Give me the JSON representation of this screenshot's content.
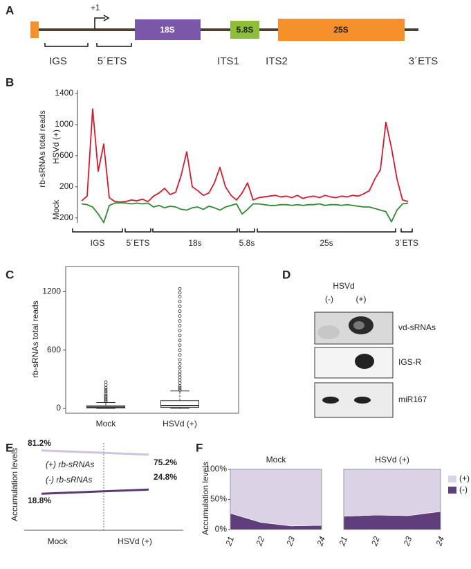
{
  "panel_labels": [
    "A",
    "B",
    "C",
    "D",
    "E",
    "F"
  ],
  "gene_map": {
    "start_label": "+1",
    "genes": [
      "18S",
      "5.8S",
      "25S"
    ],
    "regions": [
      "IGS",
      "5´ETS",
      "ITS1",
      "ITS2",
      "3´ETS"
    ]
  },
  "blot": {
    "title": "HSVd",
    "lanes": [
      "(-)",
      "(+)"
    ],
    "rows": [
      "vd-sRNAs",
      "IGS-R",
      "miR167"
    ]
  },
  "chart_data": [
    {
      "type": "line",
      "ylabel": "rb-sRNAs total reads",
      "ylim": [
        -300,
        1400
      ],
      "yticks": [
        {
          "value": -200,
          "label": "200"
        },
        200,
        600,
        1000,
        1400
      ],
      "series": [
        {
          "name": "HSVd (+)",
          "color": "#d7192d",
          "values": [
            20,
            80,
            1200,
            400,
            750,
            60,
            10,
            5,
            10,
            30,
            20,
            40,
            10,
            80,
            120,
            180,
            100,
            130,
            350,
            650,
            200,
            150,
            90,
            120,
            250,
            450,
            200,
            90,
            30,
            120,
            250,
            30,
            60,
            70,
            80,
            90,
            70,
            80,
            60,
            90,
            50,
            70,
            80,
            60,
            90,
            70,
            60,
            80,
            70,
            90,
            80,
            110,
            150,
            300,
            420,
            1030,
            700,
            300,
            30,
            10
          ]
        },
        {
          "name": "Mock",
          "color": "#2e8b2e",
          "values": [
            -20,
            -30,
            -60,
            -150,
            -260,
            -40,
            -10,
            -5,
            -10,
            -20,
            -10,
            -20,
            -10,
            -60,
            -40,
            -70,
            -50,
            -60,
            -90,
            -100,
            -70,
            -60,
            -90,
            -50,
            -70,
            -100,
            -60,
            -40,
            -20,
            -150,
            -90,
            -20,
            -20,
            -30,
            -40,
            -40,
            -30,
            -30,
            -40,
            -30,
            -40,
            -30,
            -30,
            -20,
            -40,
            -30,
            -30,
            -40,
            -30,
            -40,
            -50,
            -60,
            -60,
            -80,
            -100,
            -120,
            -250,
            -100,
            -20,
            -10
          ]
        }
      ],
      "regions": [
        "IGS",
        "5´ETS",
        "18s",
        "5.8s",
        "25s",
        "3´ETS"
      ]
    },
    {
      "type": "box",
      "ylabel": "rb-sRNAs total reads",
      "ylim": [
        -50,
        1460
      ],
      "yticks": [
        0,
        600,
        1200
      ],
      "categories": [
        "Mock",
        "HSVd (+)"
      ],
      "boxes": [
        {
          "whisker_low": 0,
          "q1": 5,
          "median": 14,
          "q3": 28,
          "whisker_high": 60,
          "outliers": [
            70,
            85,
            100,
            115,
            130,
            150,
            170,
            190,
            210,
            240,
            270
          ]
        },
        {
          "whisker_low": 0,
          "q1": 10,
          "median": 30,
          "q3": 80,
          "whisker_high": 180,
          "outliers": [
            190,
            210,
            230,
            260,
            290,
            320,
            350,
            380,
            420,
            460,
            500,
            550,
            600,
            650,
            700,
            750,
            800,
            850,
            900,
            950,
            1000,
            1050,
            1100,
            1150,
            1190,
            1230
          ]
        }
      ]
    },
    {
      "type": "line",
      "ylabel": "Accumulation levels",
      "categories": [
        "Mock",
        "HSVd (+)"
      ],
      "ylim": [
        0,
        100
      ],
      "series": [
        {
          "name": "(+) rb-sRNAs",
          "color": "#cfc3dd",
          "values": [
            81.2,
            75.2
          ],
          "value_labels": [
            "81.2%",
            "75.2%"
          ]
        },
        {
          "name": "(-) rb-sRNAs",
          "color": "#5b3a78",
          "values": [
            18.8,
            24.8
          ],
          "value_labels": [
            "18.8%",
            "24.8%"
          ]
        }
      ]
    },
    {
      "type": "area",
      "ylabel": "Accumulation levels",
      "facets": [
        "Mock",
        "HSVd (+)"
      ],
      "categories": [
        "21",
        "22",
        "23",
        "24"
      ],
      "ylim": [
        0,
        100
      ],
      "yticks": [
        {
          "value": 0,
          "label": "0%"
        },
        {
          "value": 50,
          "label": "50%"
        },
        {
          "value": 100,
          "label": "100%"
        }
      ],
      "series": [
        {
          "name": "(-)",
          "color": "#5e3f7b",
          "values": [
            [
              27,
              12,
              6,
              7
            ],
            [
              22,
              24,
              23,
              30
            ]
          ]
        },
        {
          "name": "(+)",
          "color": "#dcd2e6",
          "values": [
            [
              73,
              88,
              94,
              93
            ],
            [
              78,
              76,
              77,
              70
            ]
          ]
        }
      ]
    }
  ]
}
